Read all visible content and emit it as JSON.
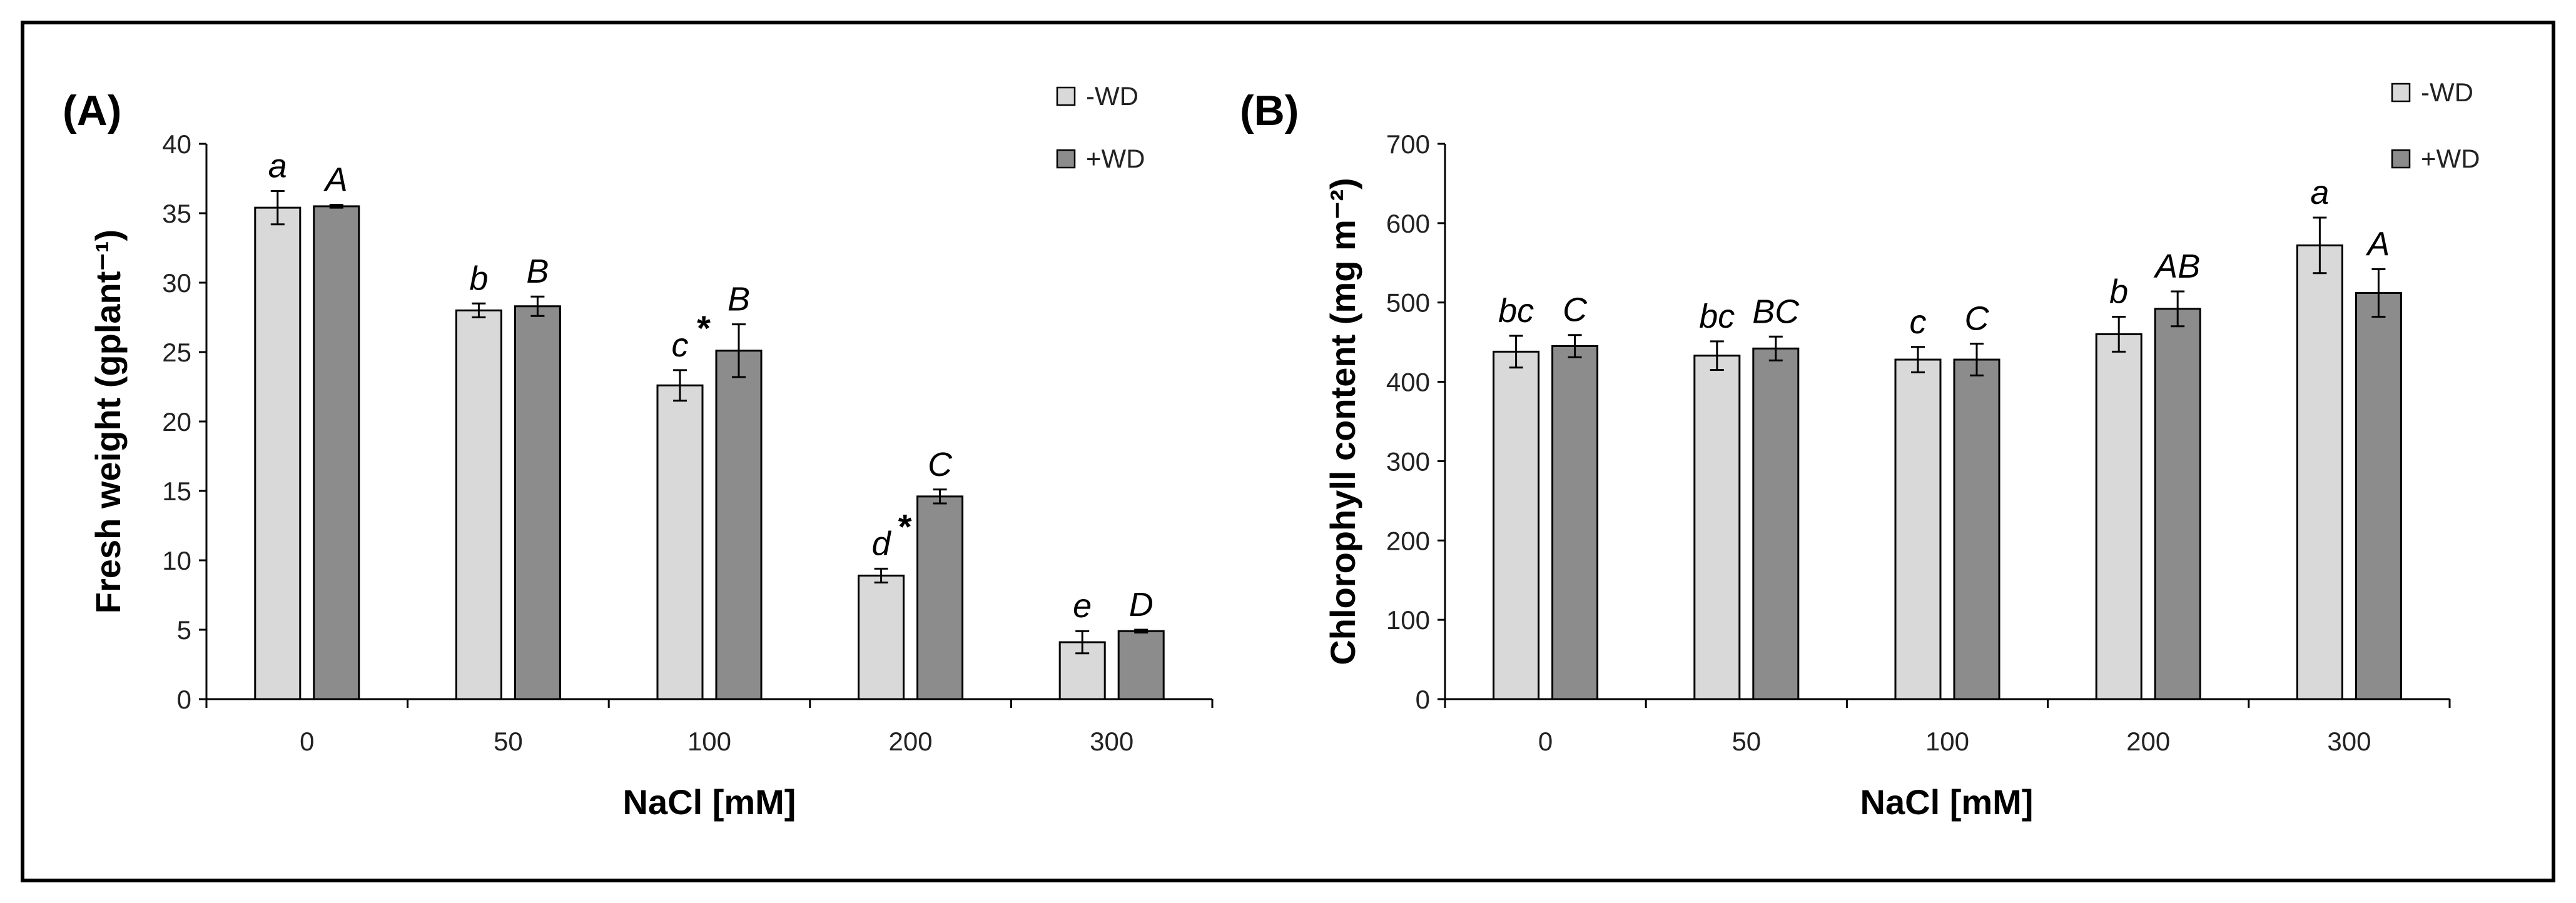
{
  "chart_data": [
    {
      "type": "bar",
      "panel_label": "(A)",
      "categories": [
        "0",
        "50",
        "100",
        "200",
        "300"
      ],
      "xlabel": "NaCl [mM]",
      "ylabel": "Fresh weight (gplant⁻¹)",
      "ylim": [
        0,
        40
      ],
      "yticks": [
        0,
        5,
        10,
        15,
        20,
        25,
        30,
        35,
        40
      ],
      "legend_position": "top-right",
      "series": [
        {
          "name": "-WD",
          "color": "#d9d9d9",
          "values": [
            35.4,
            28.0,
            22.6,
            8.9,
            4.1
          ],
          "errors": [
            1.2,
            0.5,
            1.1,
            0.5,
            0.8
          ],
          "letters": [
            "a",
            "b",
            "c",
            "d",
            "e"
          ],
          "stars": [
            "",
            "",
            "*",
            "*",
            ""
          ]
        },
        {
          "name": "+WD",
          "color": "#8c8c8c",
          "values": [
            35.5,
            28.3,
            25.1,
            14.6,
            4.9
          ],
          "errors": [
            0.1,
            0.7,
            1.9,
            0.5,
            0.1
          ],
          "letters": [
            "A",
            "B",
            "B",
            "C",
            "D"
          ],
          "stars": [
            "",
            "",
            "",
            "",
            ""
          ]
        }
      ]
    },
    {
      "type": "bar",
      "panel_label": "(B)",
      "categories": [
        "0",
        "50",
        "100",
        "200",
        "300"
      ],
      "xlabel": "NaCl [mM]",
      "ylabel": "Chlorophyll content (mg m⁻²)",
      "ylim": [
        0,
        700
      ],
      "yticks": [
        0,
        100,
        200,
        300,
        400,
        500,
        600,
        700
      ],
      "legend_position": "top-right",
      "series": [
        {
          "name": "-WD",
          "color": "#d9d9d9",
          "values": [
            438,
            433,
            428,
            460,
            572
          ],
          "errors": [
            20,
            18,
            16,
            22,
            35
          ],
          "letters": [
            "bc",
            "bc",
            "c",
            "b",
            "a"
          ],
          "stars": [
            "",
            "",
            "",
            "",
            ""
          ]
        },
        {
          "name": "+WD",
          "color": "#8c8c8c",
          "values": [
            445,
            442,
            428,
            492,
            512
          ],
          "errors": [
            14,
            15,
            20,
            22,
            30
          ],
          "letters": [
            "C",
            "BC",
            "C",
            "AB",
            "A"
          ],
          "stars": [
            "",
            "",
            "",
            "",
            ""
          ]
        }
      ]
    }
  ]
}
